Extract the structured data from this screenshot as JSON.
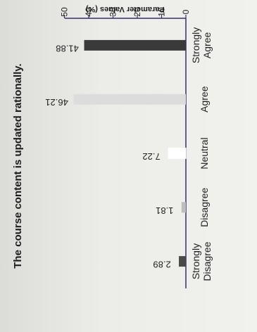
{
  "chart_data": {
    "type": "bar",
    "orientation": "horizontal",
    "title": "The course content is updated rationally.",
    "ylabel": "Parameter Values (%)",
    "xlabel": "",
    "categories": [
      "Strongly Disagree",
      "Disagree",
      "Neutral",
      "Agree",
      "Strongly Agree"
    ],
    "values": [
      2.89,
      1.81,
      7.22,
      46.21,
      41.88
    ],
    "value_labels": [
      "2.89",
      "1.81",
      "7.22",
      "46.21",
      "41.88"
    ],
    "bar_colors": [
      "#4a4a4a",
      "#bdbdbd",
      "#ffffff",
      "#dcdcdc",
      "#3a3a3a"
    ],
    "ylim": [
      0,
      50
    ],
    "ticks": [
      0,
      10,
      20,
      30,
      40,
      50
    ],
    "tick_labels": [
      "0",
      "10",
      "20",
      "30",
      "40",
      "50"
    ],
    "grid": false,
    "image_rotation": "rotated 90 degrees clockwise"
  }
}
